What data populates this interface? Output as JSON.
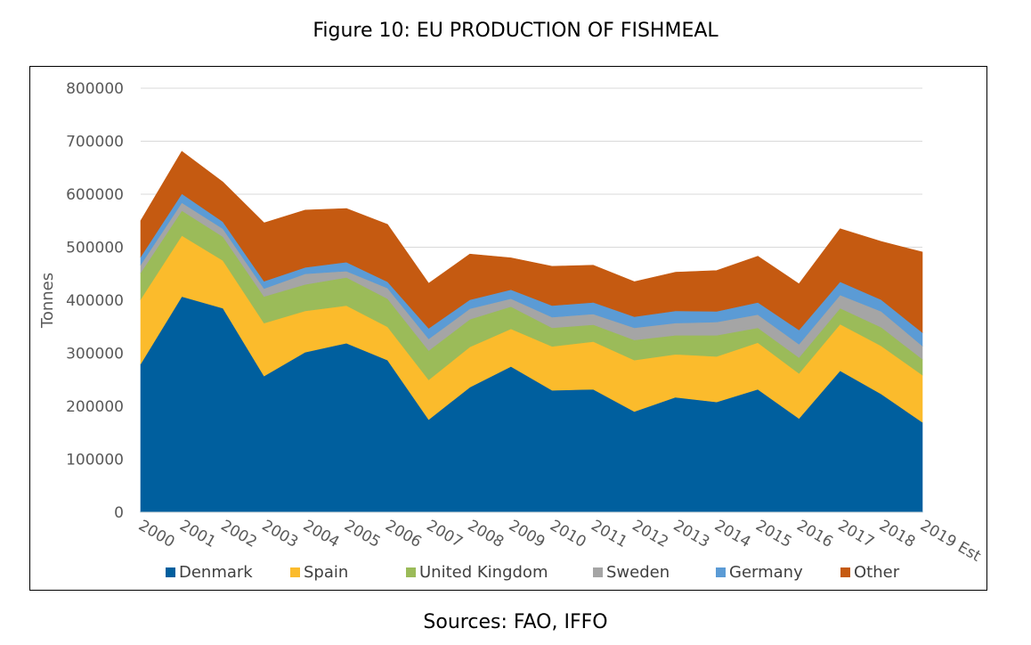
{
  "figure": {
    "title": "Figure 10: EU PRODUCTION OF FISHMEAL",
    "sources": "Sources: FAO, IFFO"
  },
  "chart_data": {
    "type": "area",
    "stacked": true,
    "title": "",
    "xlabel": "",
    "ylabel": "Tonnes",
    "ylim": [
      0,
      800000
    ],
    "yticks": [
      0,
      100000,
      200000,
      300000,
      400000,
      500000,
      600000,
      700000,
      800000
    ],
    "grid": true,
    "legend_position": "bottom",
    "categories": [
      "2000",
      "2001",
      "2002",
      "2003",
      "2004",
      "2005",
      "2006",
      "2007",
      "2008",
      "2009",
      "2010",
      "2011",
      "2012",
      "2013",
      "2014",
      "2015",
      "2016",
      "2017",
      "2018",
      "2019 Est"
    ],
    "series": [
      {
        "name": "Denmark",
        "color": "#005f9e",
        "values": [
          280000,
          407000,
          385000,
          257000,
          302000,
          319000,
          287000,
          175000,
          236000,
          275000,
          230000,
          232000,
          190000,
          217000,
          208000,
          232000,
          177000,
          267000,
          223000,
          170000
        ]
      },
      {
        "name": "Spain",
        "color": "#fbbb2c",
        "values": [
          122000,
          115000,
          90000,
          100000,
          78000,
          71000,
          63000,
          75000,
          76000,
          71000,
          83000,
          90000,
          97000,
          81000,
          86000,
          88000,
          85000,
          88000,
          91000,
          89000
        ]
      },
      {
        "name": "United Kingdom",
        "color": "#9bbb59",
        "values": [
          50000,
          47000,
          45000,
          50000,
          50000,
          53000,
          53000,
          55000,
          52000,
          42000,
          35000,
          32000,
          38000,
          36000,
          40000,
          28000,
          30000,
          30000,
          35000,
          30000
        ]
      },
      {
        "name": "Sweden",
        "color": "#a5a5a5",
        "values": [
          15000,
          15000,
          15000,
          15000,
          20000,
          12000,
          20000,
          22000,
          20000,
          15000,
          20000,
          20000,
          23000,
          23000,
          25000,
          25000,
          25000,
          25000,
          30000,
          25000
        ]
      },
      {
        "name": "Germany",
        "color": "#5b9bd5",
        "values": [
          15000,
          17000,
          13000,
          14000,
          12000,
          17000,
          12000,
          20000,
          17000,
          17000,
          22000,
          22000,
          21000,
          23000,
          20000,
          23000,
          27000,
          25000,
          22000,
          25000
        ]
      },
      {
        "name": "Other",
        "color": "#c55a11",
        "values": [
          68000,
          80000,
          75000,
          110000,
          108000,
          101000,
          108000,
          85000,
          86000,
          60000,
          74000,
          70000,
          66000,
          73000,
          77000,
          87000,
          87000,
          100000,
          110000,
          152000
        ]
      }
    ]
  }
}
